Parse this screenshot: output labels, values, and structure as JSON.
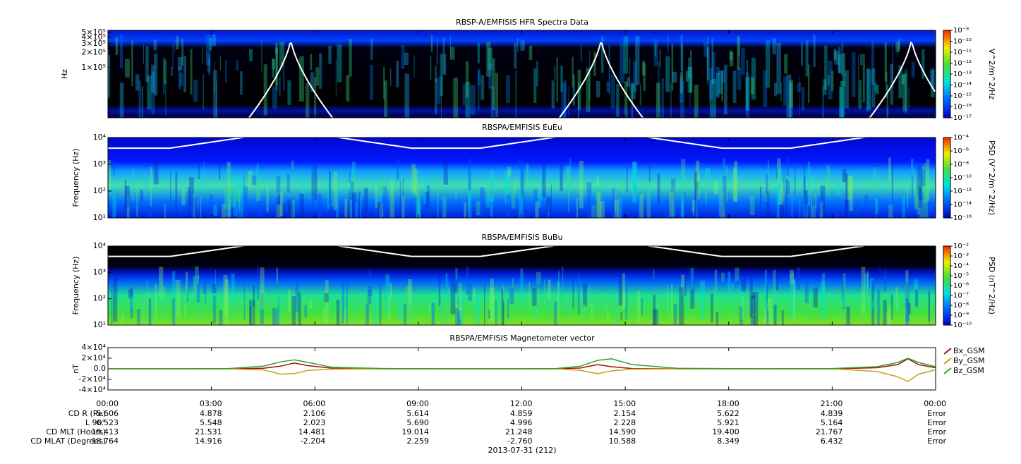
{
  "chart_data": [
    {
      "type": "spectrogram",
      "title": "RBSP-A/EMFISIS  HFR Spectra Data",
      "ylabel": "Hz",
      "log_y": true,
      "ylim": [
        10000,
        550000
      ],
      "yticks": [
        {
          "value": 100000,
          "label": "1×10⁵"
        },
        {
          "value": 200000,
          "label": "2×10⁵"
        },
        {
          "value": 300000,
          "label": "3×10⁵"
        },
        {
          "value": 400000,
          "label": "4×10⁵"
        },
        {
          "value": 500000,
          "label": "5×10⁵"
        }
      ],
      "colorbar_label": "V^2/m^2/Hz",
      "log_z": true,
      "zlim": [
        1e-17,
        1e-09
      ],
      "zticks": [
        {
          "value": 1e-09,
          "label": "10⁻⁹"
        },
        {
          "value": 1e-10,
          "label": "10⁻¹⁰"
        },
        {
          "value": 1e-11,
          "label": "10⁻¹¹"
        },
        {
          "value": 1e-12,
          "label": "10⁻¹²"
        },
        {
          "value": 1e-13,
          "label": "10⁻¹³"
        },
        {
          "value": 1e-14,
          "label": "10⁻¹⁴"
        },
        {
          "value": 1e-15,
          "label": "10⁻¹⁵"
        },
        {
          "value": 1e-16,
          "label": "10⁻¹⁶"
        },
        {
          "value": 1e-17,
          "label": "10⁻¹⁷"
        }
      ]
    },
    {
      "type": "spectrogram",
      "title": "RBSPA/EMFISIS  EuEu",
      "ylabel": "Frequency (Hz)",
      "log_y": true,
      "ylim": [
        10,
        10000
      ],
      "yticks": [
        {
          "value": 10,
          "label": "10¹"
        },
        {
          "value": 100,
          "label": "10²"
        },
        {
          "value": 1000,
          "label": "10³"
        },
        {
          "value": 10000,
          "label": "10⁴"
        }
      ],
      "colorbar_label": "PSD (V^2/m^2/Hz)",
      "log_z": true,
      "zlim": [
        1e-16,
        0.0001
      ],
      "zticks": [
        {
          "value": 0.0001,
          "label": "10⁻⁴"
        },
        {
          "value": 1e-06,
          "label": "10⁻⁶"
        },
        {
          "value": 1e-08,
          "label": "10⁻⁸"
        },
        {
          "value": 1e-10,
          "label": "10⁻¹⁰"
        },
        {
          "value": 1e-12,
          "label": "10⁻¹²"
        },
        {
          "value": 1e-14,
          "label": "10⁻¹⁴"
        },
        {
          "value": 1e-16,
          "label": "10⁻¹⁶"
        }
      ]
    },
    {
      "type": "spectrogram",
      "title": "RBSPA/EMFISIS  BuBu",
      "ylabel": "Frequency (Hz)",
      "log_y": true,
      "ylim": [
        10,
        10000
      ],
      "yticks": [
        {
          "value": 10,
          "label": "10¹"
        },
        {
          "value": 100,
          "label": "10²"
        },
        {
          "value": 1000,
          "label": "10³"
        },
        {
          "value": 10000,
          "label": "10⁴"
        }
      ],
      "colorbar_label": "PSD (nT^2/Hz)",
      "log_z": true,
      "zlim": [
        1e-10,
        0.01
      ],
      "zticks": [
        {
          "value": 0.01,
          "label": "10⁻²"
        },
        {
          "value": 0.001,
          "label": "10⁻³"
        },
        {
          "value": 0.0001,
          "label": "10⁻⁴"
        },
        {
          "value": 1e-05,
          "label": "10⁻⁵"
        },
        {
          "value": 1e-06,
          "label": "10⁻⁶"
        },
        {
          "value": 1e-07,
          "label": "10⁻⁷"
        },
        {
          "value": 1e-08,
          "label": "10⁻⁸"
        },
        {
          "value": 1e-09,
          "label": "10⁻⁹"
        },
        {
          "value": 1e-10,
          "label": "10⁻¹⁰"
        }
      ]
    },
    {
      "type": "line",
      "title": "RBSPA/EMFISIS  Magnetometer vector",
      "ylabel": "nT",
      "ylim": [
        -40000,
        40000
      ],
      "yticks": [
        {
          "value": -40000,
          "label": "-4×10⁴"
        },
        {
          "value": -20000,
          "label": "-2×10⁴"
        },
        {
          "value": 0,
          "label": "0.0"
        },
        {
          "value": 20000,
          "label": "2×10⁴"
        },
        {
          "value": 40000,
          "label": "4×10⁴"
        }
      ],
      "xlim": [
        0,
        24
      ],
      "xticks": [
        {
          "value": 0,
          "label": "00:00"
        },
        {
          "value": 3,
          "label": "03:00"
        },
        {
          "value": 6,
          "label": "06:00"
        },
        {
          "value": 9,
          "label": "09:00"
        },
        {
          "value": 12,
          "label": "12:00"
        },
        {
          "value": 15,
          "label": "15:00"
        },
        {
          "value": 18,
          "label": "18:00"
        },
        {
          "value": 21,
          "label": "21:00"
        },
        {
          "value": 24,
          "label": "00:00"
        }
      ],
      "xlabel": "2013-07-31 (212)",
      "x": [
        0,
        2,
        3.5,
        4.5,
        5.0,
        5.4,
        5.8,
        6.5,
        8,
        10,
        12,
        13,
        13.7,
        14.2,
        14.6,
        15.2,
        16.5,
        19,
        21,
        22.3,
        22.9,
        23.2,
        23.5,
        24
      ],
      "series": [
        {
          "name": "Bx_GSM",
          "color": "#a01010",
          "values": [
            0,
            0,
            0,
            1000,
            5000,
            11000,
            6000,
            1000,
            0,
            0,
            0,
            0,
            1500,
            8000,
            4000,
            500,
            0,
            0,
            0,
            2000,
            8000,
            19000,
            8000,
            2000
          ]
        },
        {
          "name": "By_GSM",
          "color": "#c8a010",
          "values": [
            0,
            0,
            0,
            -2000,
            -10000,
            -9000,
            -3000,
            -500,
            0,
            0,
            0,
            0,
            -3000,
            -9000,
            -4000,
            -500,
            0,
            0,
            0,
            -5000,
            -15000,
            -24000,
            -10000,
            -2000
          ]
        },
        {
          "name": "Bz_GSM",
          "color": "#30a030",
          "values": [
            0,
            0,
            500,
            5000,
            13000,
            17000,
            12000,
            3000,
            500,
            0,
            0,
            500,
            5000,
            16000,
            19000,
            8000,
            1000,
            0,
            500,
            4000,
            12000,
            20000,
            12000,
            4000
          ]
        }
      ]
    }
  ],
  "ephemeris": {
    "rows": [
      {
        "label": "CD R (Re)",
        "values": [
          "5.606",
          "4.878",
          "2.106",
          "5.614",
          "4.859",
          "2.154",
          "5.622",
          "4.839",
          "Error"
        ]
      },
      {
        "label": "L 90°",
        "values": [
          "6.523",
          "5.548",
          "2.023",
          "5.690",
          "4.996",
          "2.228",
          "5.921",
          "5.164",
          "Error"
        ]
      },
      {
        "label": "CD MLT (Hours)",
        "values": [
          "19.413",
          "21.531",
          "14.481",
          "19.014",
          "21.248",
          "14.590",
          "19.400",
          "21.767",
          "Error"
        ]
      },
      {
        "label": "CD MLAT (Degrees)",
        "values": [
          "18.764",
          "14.916",
          "-2.204",
          "2.259",
          "-2.760",
          "10.588",
          "8.349",
          "6.432",
          "Error"
        ]
      }
    ]
  }
}
